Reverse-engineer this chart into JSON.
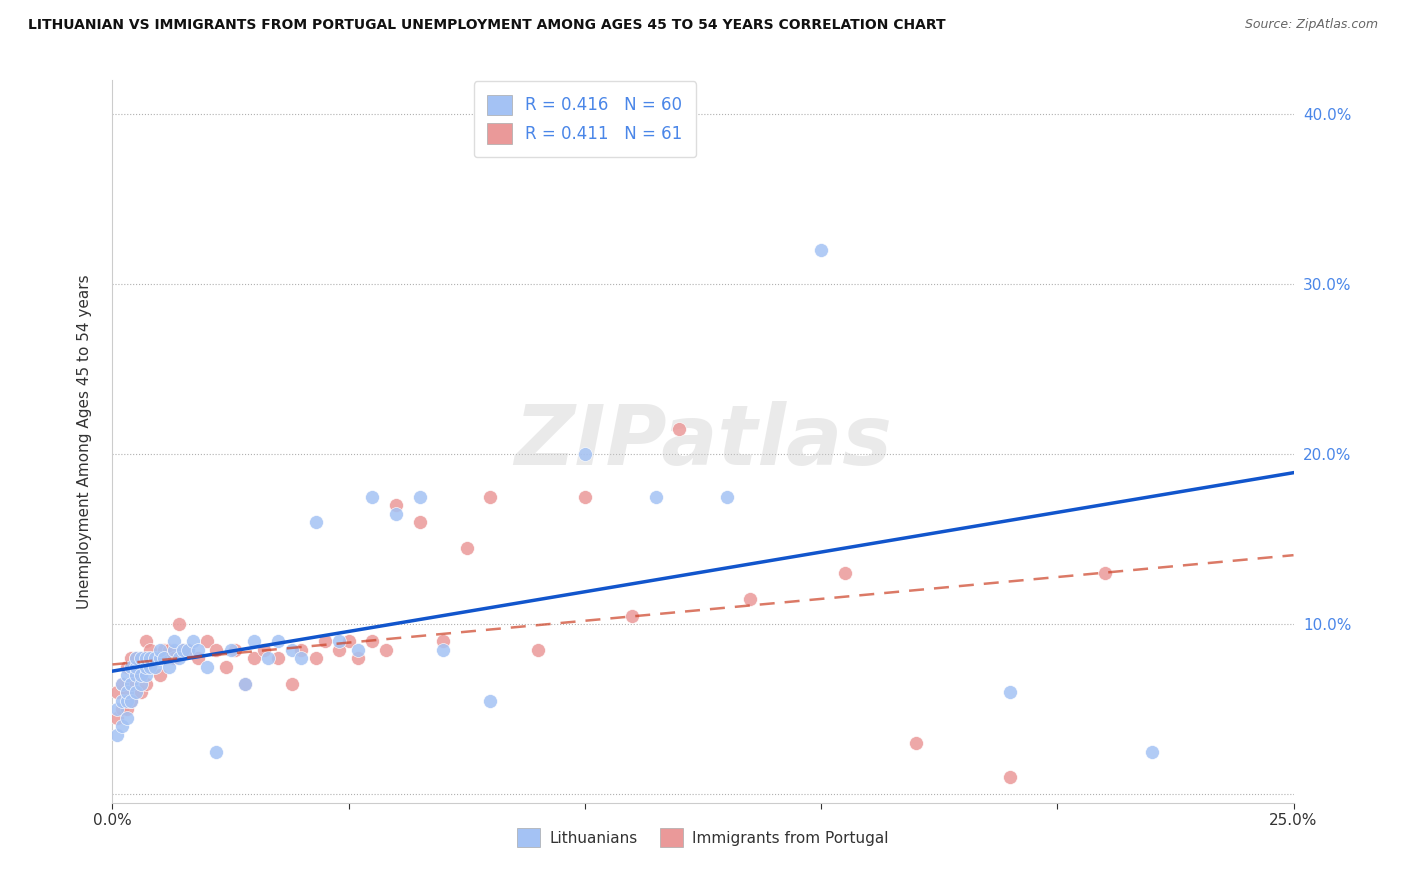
{
  "title": "LITHUANIAN VS IMMIGRANTS FROM PORTUGAL UNEMPLOYMENT AMONG AGES 45 TO 54 YEARS CORRELATION CHART",
  "source": "Source: ZipAtlas.com",
  "ylabel": "Unemployment Among Ages 45 to 54 years",
  "xlim": [
    0.0,
    0.25
  ],
  "ylim": [
    -0.005,
    0.42
  ],
  "xticks": [
    0.0,
    0.05,
    0.1,
    0.15,
    0.2,
    0.25
  ],
  "xtick_labels": [
    "0.0%",
    "",
    "",
    "",
    "",
    "25.0%"
  ],
  "yticks": [
    0.0,
    0.1,
    0.2,
    0.3,
    0.4
  ],
  "ytick_labels_right": [
    "",
    "10.0%",
    "20.0%",
    "30.0%",
    "40.0%"
  ],
  "blue_scatter_color": "#a4c2f4",
  "pink_scatter_color": "#ea9999",
  "blue_line_color": "#1155cc",
  "pink_line_color": "#cc4125",
  "R_blue": 0.416,
  "N_blue": 60,
  "R_pink": 0.411,
  "N_pink": 61,
  "watermark": "ZIPatlas",
  "background_color": "#ffffff",
  "legend_label_blue": "Lithuanians",
  "legend_label_pink": "Immigrants from Portugal",
  "right_axis_color": "#4a86e8",
  "blue_x": [
    0.001,
    0.001,
    0.002,
    0.002,
    0.002,
    0.003,
    0.003,
    0.003,
    0.003,
    0.004,
    0.004,
    0.004,
    0.005,
    0.005,
    0.005,
    0.005,
    0.006,
    0.006,
    0.006,
    0.007,
    0.007,
    0.007,
    0.008,
    0.008,
    0.009,
    0.009,
    0.01,
    0.01,
    0.011,
    0.012,
    0.013,
    0.013,
    0.014,
    0.015,
    0.016,
    0.017,
    0.018,
    0.02,
    0.022,
    0.025,
    0.028,
    0.03,
    0.033,
    0.035,
    0.038,
    0.04,
    0.043,
    0.048,
    0.052,
    0.055,
    0.06,
    0.065,
    0.07,
    0.08,
    0.1,
    0.115,
    0.13,
    0.15,
    0.19,
    0.22
  ],
  "blue_y": [
    0.035,
    0.05,
    0.04,
    0.055,
    0.065,
    0.045,
    0.055,
    0.06,
    0.07,
    0.055,
    0.065,
    0.075,
    0.06,
    0.07,
    0.075,
    0.08,
    0.065,
    0.07,
    0.08,
    0.07,
    0.075,
    0.08,
    0.075,
    0.08,
    0.075,
    0.08,
    0.08,
    0.085,
    0.08,
    0.075,
    0.085,
    0.09,
    0.08,
    0.085,
    0.085,
    0.09,
    0.085,
    0.075,
    0.025,
    0.085,
    0.065,
    0.09,
    0.08,
    0.09,
    0.085,
    0.08,
    0.16,
    0.09,
    0.085,
    0.175,
    0.165,
    0.175,
    0.085,
    0.055,
    0.2,
    0.175,
    0.175,
    0.32,
    0.06,
    0.025
  ],
  "pink_x": [
    0.001,
    0.001,
    0.002,
    0.002,
    0.003,
    0.003,
    0.003,
    0.004,
    0.004,
    0.004,
    0.005,
    0.005,
    0.005,
    0.006,
    0.006,
    0.006,
    0.007,
    0.007,
    0.008,
    0.008,
    0.009,
    0.01,
    0.01,
    0.011,
    0.012,
    0.013,
    0.014,
    0.015,
    0.016,
    0.018,
    0.02,
    0.022,
    0.024,
    0.026,
    0.028,
    0.03,
    0.032,
    0.035,
    0.038,
    0.04,
    0.043,
    0.045,
    0.048,
    0.05,
    0.052,
    0.055,
    0.058,
    0.06,
    0.065,
    0.07,
    0.075,
    0.08,
    0.09,
    0.1,
    0.11,
    0.12,
    0.135,
    0.155,
    0.17,
    0.19,
    0.21
  ],
  "pink_y": [
    0.045,
    0.06,
    0.05,
    0.065,
    0.05,
    0.06,
    0.075,
    0.055,
    0.065,
    0.08,
    0.06,
    0.07,
    0.08,
    0.06,
    0.07,
    0.08,
    0.065,
    0.09,
    0.075,
    0.085,
    0.08,
    0.07,
    0.08,
    0.085,
    0.085,
    0.08,
    0.1,
    0.085,
    0.085,
    0.08,
    0.09,
    0.085,
    0.075,
    0.085,
    0.065,
    0.08,
    0.085,
    0.08,
    0.065,
    0.085,
    0.08,
    0.09,
    0.085,
    0.09,
    0.08,
    0.09,
    0.085,
    0.17,
    0.16,
    0.09,
    0.145,
    0.175,
    0.085,
    0.175,
    0.105,
    0.215,
    0.115,
    0.13,
    0.03,
    0.01,
    0.13
  ]
}
